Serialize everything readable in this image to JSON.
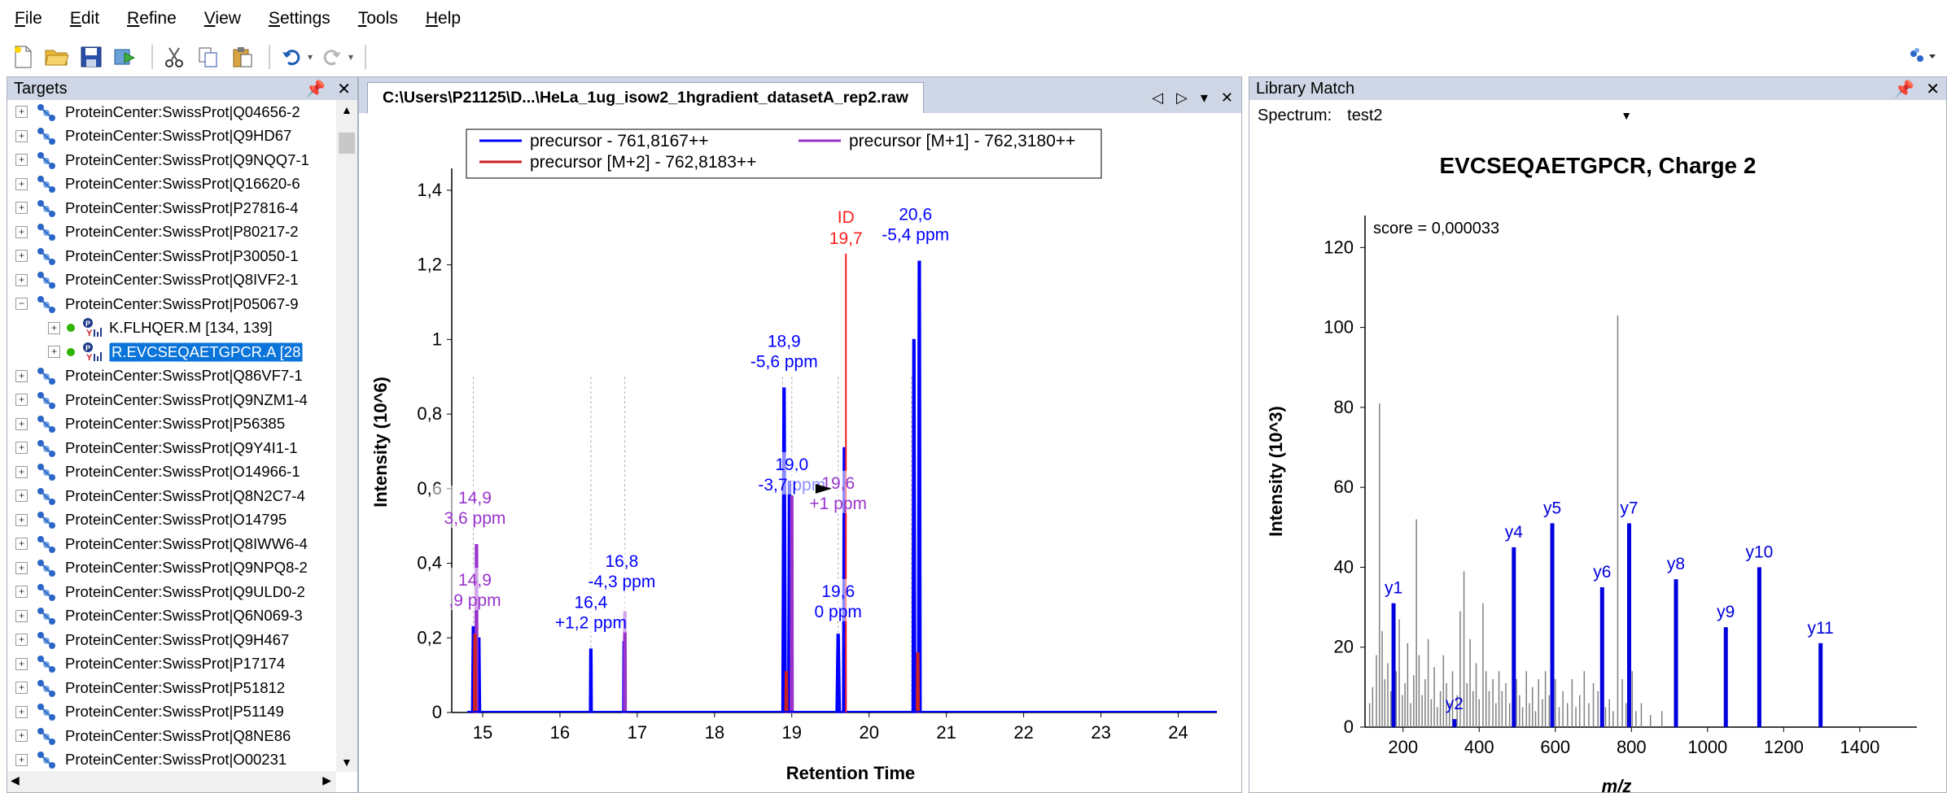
{
  "menu": [
    {
      "label": "File",
      "accel": "F",
      "rest": "ile"
    },
    {
      "label": "Edit",
      "accel": "E",
      "rest": "dit"
    },
    {
      "label": "Refine",
      "accel": "R",
      "rest": "efine"
    },
    {
      "label": "View",
      "accel": "V",
      "rest": "iew"
    },
    {
      "label": "Settings",
      "accel": "S",
      "rest": "ettings"
    },
    {
      "label": "Tools",
      "accel": "T",
      "rest": "ools"
    },
    {
      "label": "Help",
      "accel": "H",
      "rest": "elp"
    }
  ],
  "targets": {
    "title": "Targets",
    "pin": "̧",
    "rows": [
      {
        "kind": "protein",
        "label": "ProteinCenter:SwissProt|Q04656-2",
        "expander": "+"
      },
      {
        "kind": "protein",
        "label": "ProteinCenter:SwissProt|Q9HD67",
        "expander": "+"
      },
      {
        "kind": "protein",
        "label": "ProteinCenter:SwissProt|Q9NQQ7-1",
        "expander": "+"
      },
      {
        "kind": "protein",
        "label": "ProteinCenter:SwissProt|Q16620-6",
        "expander": "+"
      },
      {
        "kind": "protein",
        "label": "ProteinCenter:SwissProt|P27816-4",
        "expander": "+"
      },
      {
        "kind": "protein",
        "label": "ProteinCenter:SwissProt|P80217-2",
        "expander": "+"
      },
      {
        "kind": "protein",
        "label": "ProteinCenter:SwissProt|P30050-1",
        "expander": "+"
      },
      {
        "kind": "protein",
        "label": "ProteinCenter:SwissProt|Q8IVF2-1",
        "expander": "+"
      },
      {
        "kind": "protein",
        "label": "ProteinCenter:SwissProt|P05067-9",
        "expander": "−"
      },
      {
        "kind": "peptide",
        "label": "K.FLHQER.M [134, 139]",
        "expander": "+",
        "selected": false
      },
      {
        "kind": "peptide",
        "label": "R.EVCSEQAETGPCR.A [28",
        "expander": "+",
        "selected": true
      },
      {
        "kind": "protein",
        "label": "ProteinCenter:SwissProt|Q86VF7-1",
        "expander": "+"
      },
      {
        "kind": "protein",
        "label": "ProteinCenter:SwissProt|Q9NZM1-4",
        "expander": "+"
      },
      {
        "kind": "protein",
        "label": "ProteinCenter:SwissProt|P56385",
        "expander": "+"
      },
      {
        "kind": "protein",
        "label": "ProteinCenter:SwissProt|Q9Y4I1-1",
        "expander": "+"
      },
      {
        "kind": "protein",
        "label": "ProteinCenter:SwissProt|O14966-1",
        "expander": "+"
      },
      {
        "kind": "protein",
        "label": "ProteinCenter:SwissProt|Q8N2C7-4",
        "expander": "+"
      },
      {
        "kind": "protein",
        "label": "ProteinCenter:SwissProt|O14795",
        "expander": "+"
      },
      {
        "kind": "protein",
        "label": "ProteinCenter:SwissProt|Q8IWW6-4",
        "expander": "+"
      },
      {
        "kind": "protein",
        "label": "ProteinCenter:SwissProt|Q9NPQ8-2",
        "expander": "+"
      },
      {
        "kind": "protein",
        "label": "ProteinCenter:SwissProt|Q9ULD0-2",
        "expander": "+"
      },
      {
        "kind": "protein",
        "label": "ProteinCenter:SwissProt|Q6N069-3",
        "expander": "+"
      },
      {
        "kind": "protein",
        "label": "ProteinCenter:SwissProt|Q9H467",
        "expander": "+"
      },
      {
        "kind": "protein",
        "label": "ProteinCenter:SwissProt|P17174",
        "expander": "+"
      },
      {
        "kind": "protein",
        "label": "ProteinCenter:SwissProt|P51812",
        "expander": "+"
      },
      {
        "kind": "protein",
        "label": "ProteinCenter:SwissProt|P51149",
        "expander": "+"
      },
      {
        "kind": "protein",
        "label": "ProteinCenter:SwissProt|Q8NE86",
        "expander": "+"
      },
      {
        "kind": "protein",
        "label": "ProteinCenter:SwissProt|O00231",
        "expander": "+"
      }
    ]
  },
  "document": {
    "tab_title": "C:\\Users\\P21125\\D...\\HeLa_1ug_isow2_1hgradient_datasetA_rep2.raw"
  },
  "library": {
    "title": "Library Match",
    "spectrum_label": "Spectrum:",
    "spectrum_value": "test2"
  },
  "chart_data": [
    {
      "type": "line",
      "name": "chromatogram",
      "xlabel": "Retention Time",
      "ylabel": "Intensity (10^6)",
      "xlim": [
        14.6,
        24.5
      ],
      "ylim": [
        0,
        1.45
      ],
      "xticks": [
        "15",
        "16",
        "17",
        "18",
        "19",
        "20",
        "21",
        "22",
        "23",
        "24"
      ],
      "xtick_values": [
        15,
        16,
        17,
        18,
        19,
        20,
        21,
        22,
        23,
        24
      ],
      "yticks": [
        "0",
        "0,2",
        "0,4",
        "0,6",
        "0,8",
        "1",
        "1,2",
        "1,4"
      ],
      "ytick_values": [
        0,
        0.2,
        0.4,
        0.6,
        0.8,
        1.0,
        1.2,
        1.4
      ],
      "legend": [
        "precursor - 761,8167++",
        "precursor [M+1] - 762,3180++",
        "precursor [M+2] - 762,8183++"
      ],
      "colors": {
        "precursor": "#0000ff",
        "m1": "#9933cc",
        "m2": "#cc2222",
        "id": "#ff2020"
      },
      "series": [
        {
          "name": "precursor - 761,8167++",
          "color": "#0000ff",
          "peaks": [
            {
              "rt": 14.88,
              "height": 0.23,
              "width": 0.05
            },
            {
              "rt": 14.95,
              "height": 0.2,
              "width": 0.05
            },
            {
              "rt": 16.4,
              "height": 0.17,
              "width": 0.04
            },
            {
              "rt": 16.83,
              "height": 0.19,
              "width": 0.04
            },
            {
              "rt": 18.9,
              "height": 0.87,
              "width": 0.06
            },
            {
              "rt": 18.97,
              "height": 0.62,
              "width": 0.05
            },
            {
              "rt": 19.6,
              "height": 0.21,
              "width": 0.06
            },
            {
              "rt": 19.68,
              "height": 0.71,
              "width": 0.05
            },
            {
              "rt": 20.58,
              "height": 1.0,
              "width": 0.05
            },
            {
              "rt": 20.65,
              "height": 1.21,
              "width": 0.05
            }
          ]
        },
        {
          "name": "precursor [M+1] - 762,3180++",
          "color": "#9933cc",
          "peaks": [
            {
              "rt": 14.92,
              "height": 0.45,
              "width": 0.04
            },
            {
              "rt": 16.84,
              "height": 0.27,
              "width": 0.04
            },
            {
              "rt": 19.0,
              "height": 0.58,
              "width": 0.04
            }
          ]
        },
        {
          "name": "precursor [M+2] - 762,8183++",
          "color": "#cc2222",
          "peaks": [
            {
              "rt": 14.9,
              "height": 0.21,
              "width": 0.04
            },
            {
              "rt": 18.93,
              "height": 0.11,
              "width": 0.04
            },
            {
              "rt": 20.63,
              "height": 0.16,
              "width": 0.04
            }
          ]
        }
      ],
      "id_line": {
        "rt": 19.7,
        "height": 1.23,
        "label": "ID",
        "value_label": "19,7"
      },
      "annotations": [
        {
          "rt": 14.9,
          "y": 0.56,
          "line1": "14,9",
          "line2": "3,6 ppm",
          "color": "#9933cc"
        },
        {
          "rt": 14.9,
          "y": 0.34,
          "line1": "14,9",
          "line2": ",9 ppm",
          "color": "#9933cc"
        },
        {
          "rt": 16.4,
          "y": 0.28,
          "line1": "16,4",
          "line2": "+1,2 ppm",
          "color": "#0000ff"
        },
        {
          "rt": 16.8,
          "y": 0.39,
          "line1": "16,8",
          "line2": "-4,3 ppm",
          "color": "#0000ff"
        },
        {
          "rt": 18.9,
          "y": 0.98,
          "line1": "18,9",
          "line2": "-5,6 ppm",
          "color": "#0000ff"
        },
        {
          "rt": 19.0,
          "y": 0.65,
          "line1": "19,0",
          "line2": "-3,7 ppm",
          "color": "#0000ff"
        },
        {
          "rt": 19.6,
          "y": 0.6,
          "line1": "19,6",
          "line2": "+1 ppm",
          "color": "#9933cc"
        },
        {
          "rt": 19.6,
          "y": 0.31,
          "line1": "19,6",
          "line2": "0 ppm",
          "color": "#0000ff"
        },
        {
          "rt": 20.6,
          "y": 1.32,
          "line1": "20,6",
          "line2": "-5,4 ppm",
          "color": "#0000ff"
        }
      ]
    },
    {
      "type": "bar",
      "name": "library-spectrum",
      "title": "EVCSEQAETGPCR, Charge 2",
      "xlabel": "m/z",
      "ylabel": "Intensity (10^3)",
      "xlim": [
        100,
        1550
      ],
      "ylim": [
        0,
        128
      ],
      "xticks": [
        "200",
        "400",
        "600",
        "800",
        "1000",
        "1200",
        "1400"
      ],
      "xtick_values": [
        200,
        400,
        600,
        800,
        1000,
        1200,
        1400
      ],
      "yticks": [
        "0",
        "20",
        "40",
        "60",
        "80",
        "100",
        "120"
      ],
      "ytick_values": [
        0,
        20,
        40,
        60,
        80,
        100,
        120
      ],
      "score_label": "score = 0,000033",
      "matched_color": "#0000dd",
      "unmatched_color": "#808080",
      "matched_peaks": [
        {
          "label": "y1",
          "mz": 175,
          "intensity": 31
        },
        {
          "label": "y2",
          "mz": 335,
          "intensity": 2
        },
        {
          "label": "y4",
          "mz": 491,
          "intensity": 45
        },
        {
          "label": "y5",
          "mz": 592,
          "intensity": 51
        },
        {
          "label": "y6",
          "mz": 723,
          "intensity": 35
        },
        {
          "label": "y7",
          "mz": 794,
          "intensity": 51
        },
        {
          "label": "y8",
          "mz": 917,
          "intensity": 37
        },
        {
          "label": "y9",
          "mz": 1048,
          "intensity": 25
        },
        {
          "label": "y10",
          "mz": 1136,
          "intensity": 40
        },
        {
          "label": "y11",
          "mz": 1297,
          "intensity": 21
        }
      ],
      "unmatched_peaks": [
        [
          112,
          6
        ],
        [
          120,
          10
        ],
        [
          130,
          18
        ],
        [
          138,
          81
        ],
        [
          145,
          24
        ],
        [
          152,
          12
        ],
        [
          160,
          16
        ],
        [
          168,
          9
        ],
        [
          182,
          14
        ],
        [
          190,
          27
        ],
        [
          198,
          8
        ],
        [
          205,
          11
        ],
        [
          212,
          21
        ],
        [
          220,
          6
        ],
        [
          228,
          13
        ],
        [
          235,
          52
        ],
        [
          242,
          18
        ],
        [
          250,
          8
        ],
        [
          258,
          12
        ],
        [
          266,
          22
        ],
        [
          274,
          7
        ],
        [
          282,
          15
        ],
        [
          290,
          5
        ],
        [
          298,
          9
        ],
        [
          306,
          18
        ],
        [
          314,
          11
        ],
        [
          322,
          6
        ],
        [
          330,
          14
        ],
        [
          342,
          8
        ],
        [
          350,
          29
        ],
        [
          360,
          39
        ],
        [
          368,
          11
        ],
        [
          376,
          22
        ],
        [
          384,
          9
        ],
        [
          392,
          16
        ],
        [
          400,
          7
        ],
        [
          410,
          31
        ],
        [
          418,
          14
        ],
        [
          426,
          9
        ],
        [
          436,
          12
        ],
        [
          444,
          6
        ],
        [
          452,
          14
        ],
        [
          460,
          9
        ],
        [
          470,
          11
        ],
        [
          480,
          6
        ],
        [
          498,
          12
        ],
        [
          506,
          8
        ],
        [
          514,
          5
        ],
        [
          524,
          14
        ],
        [
          532,
          6
        ],
        [
          540,
          10
        ],
        [
          548,
          4
        ],
        [
          556,
          12
        ],
        [
          566,
          7
        ],
        [
          574,
          14
        ],
        [
          584,
          8
        ],
        [
          600,
          12
        ],
        [
          610,
          5
        ],
        [
          620,
          9
        ],
        [
          632,
          6
        ],
        [
          644,
          12
        ],
        [
          654,
          5
        ],
        [
          664,
          8
        ],
        [
          676,
          14
        ],
        [
          688,
          6
        ],
        [
          700,
          11
        ],
        [
          712,
          9
        ],
        [
          732,
          5
        ],
        [
          742,
          7
        ],
        [
          752,
          4
        ],
        [
          764,
          103
        ],
        [
          776,
          12
        ],
        [
          786,
          6
        ],
        [
          802,
          14
        ],
        [
          812,
          4
        ],
        [
          826,
          6
        ],
        [
          850,
          3
        ],
        [
          880,
          4
        ]
      ]
    }
  ]
}
